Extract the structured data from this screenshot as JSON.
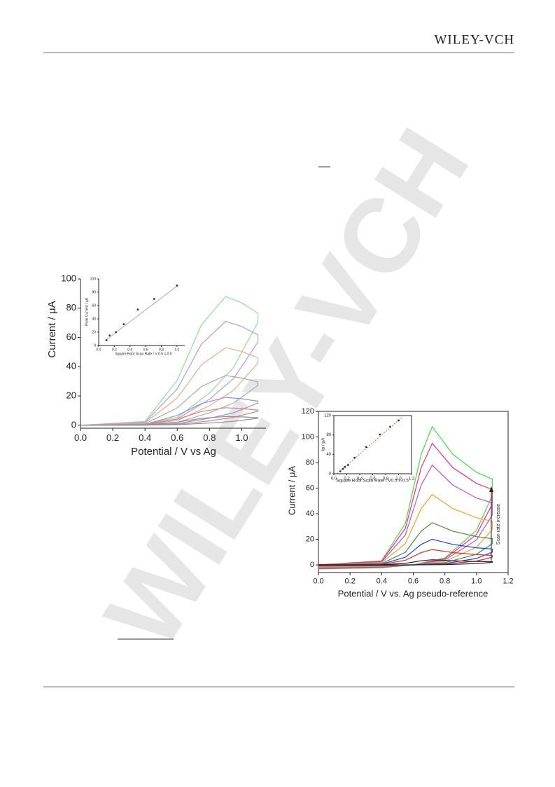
{
  "header": {
    "brand": "WILEY-VCH"
  },
  "watermark": "WILEY-VCH",
  "chart_data": [
    {
      "type": "line",
      "x_label": "Potential / V vs Ag",
      "y_label": "Current / μA",
      "xlim": [
        0,
        1.15
      ],
      "ylim": [
        -2,
        100
      ],
      "xticks": [
        {
          "value": 0,
          "label": "0.0"
        },
        0.2,
        0.4,
        0.6,
        0.8,
        {
          "value": 1,
          "label": "1.0"
        }
      ],
      "yticks": [
        0,
        20,
        40,
        60,
        80,
        100
      ],
      "x": [
        0,
        0.4,
        0.6,
        0.75,
        0.9,
        1.0,
        1.1,
        1.1,
        0.95,
        0.8,
        0.6,
        0.4,
        0
      ],
      "series": [
        {
          "color": "#8fe08f",
          "values": [
            0,
            2.6,
            30.8,
            68.6,
            88,
            83.6,
            76.6,
            70.4,
            39.6,
            22,
            5.3,
            0.9,
            0
          ]
        },
        {
          "color": "#a89ee8",
          "values": [
            0,
            2.1,
            24.9,
            55.4,
            71,
            67.5,
            61.8,
            56.8,
            32,
            17.8,
            4.3,
            0.7,
            0
          ]
        },
        {
          "color": "#f0a890",
          "values": [
            0,
            1.6,
            18.6,
            41.3,
            53,
            50.4,
            46.1,
            42.4,
            23.9,
            13.3,
            3.2,
            0.5,
            0
          ]
        },
        {
          "color": "#a0b0a0",
          "values": [
            0,
            1,
            11.9,
            26.5,
            34,
            32.3,
            29.6,
            27.2,
            15.3,
            8.5,
            2,
            0.3,
            0
          ]
        },
        {
          "color": "#9090d8",
          "values": [
            0,
            0.6,
            6.7,
            14.8,
            19,
            18.1,
            16.5,
            15.2,
            8.6,
            4.8,
            1.1,
            0.2,
            0
          ]
        },
        {
          "color": "#e08080",
          "values": [
            0,
            0.4,
            4.2,
            9.4,
            12,
            11.4,
            10.4,
            9.6,
            5.4,
            3,
            0.7,
            0.1,
            0
          ]
        },
        {
          "color": "#909090",
          "values": [
            0,
            0.2,
            2.1,
            4.7,
            6,
            5.7,
            5.2,
            4.8,
            2.7,
            1.5,
            0.4,
            0.1,
            0
          ]
        }
      ]
    },
    {
      "type": "scatter",
      "x_label": "Square Root Scan Rate / V 0.5 s-0.5",
      "y_label": "Peak Current / μA",
      "xlim": [
        0,
        1.1
      ],
      "ylim": [
        0,
        100
      ],
      "xticks": [
        {
          "value": 0,
          "label": "0.0"
        },
        0.2,
        0.4,
        0.6,
        0.8,
        {
          "value": 1,
          "label": "1.0"
        }
      ],
      "yticks": [
        0,
        20,
        40,
        60,
        80,
        100
      ],
      "x": [
        0.1,
        0.14,
        0.22,
        0.32,
        0.5,
        0.71,
        1.0
      ],
      "values": [
        8,
        15,
        20,
        32,
        54,
        70,
        90
      ],
      "color": "#222222",
      "fit": {
        "x": [
          0.08,
          1.02
        ],
        "values": [
          7,
          91
        ],
        "color": "#999999",
        "dashed": false
      }
    },
    {
      "type": "line",
      "x_label": "Potential / V vs. Ag pseudo-reference",
      "y_label": "Current / μA",
      "annotation": "Scan rate increase",
      "xlim": [
        0,
        1.2
      ],
      "ylim": [
        -6,
        120
      ],
      "xticks": [
        {
          "value": 0,
          "label": "0.0"
        },
        0.2,
        0.4,
        0.6,
        0.8,
        {
          "value": 1,
          "label": "1.0"
        },
        1.2
      ],
      "yticks": [
        0,
        20,
        40,
        60,
        80,
        100,
        120
      ],
      "x": [
        0,
        0.4,
        0.55,
        0.65,
        0.72,
        0.85,
        1.0,
        1.1,
        1.1,
        1.0,
        0.8,
        0.6,
        0.4,
        0
      ],
      "series": [
        {
          "color": "#40e040",
          "values": [
            0,
            3.2,
            32.4,
            86.4,
            108,
            86.4,
            72.4,
            67,
            54,
            27,
            5.4,
            0,
            -2.2,
            -3.2
          ]
        },
        {
          "color": "#f03070",
          "values": [
            0,
            2.9,
            28.5,
            76,
            95,
            76,
            63.7,
            58.9,
            47.5,
            23.8,
            4.8,
            0,
            -1.9,
            -2.9
          ]
        },
        {
          "color": "#b050f0",
          "values": [
            0,
            2.3,
            23.4,
            62.4,
            78,
            62.4,
            52.3,
            48.4,
            39,
            19.5,
            3.9,
            0,
            -1.6,
            -2.3
          ]
        },
        {
          "color": "#f0a030",
          "values": [
            0,
            1.7,
            16.5,
            44,
            55,
            44,
            36.9,
            34.1,
            27.5,
            13.8,
            2.8,
            0,
            -1.1,
            -1.7
          ]
        },
        {
          "color": "#409040",
          "values": [
            0,
            1,
            9.9,
            26.4,
            33,
            26.4,
            22.1,
            20.5,
            16.5,
            8.3,
            1.7,
            0,
            -0.7,
            -1
          ]
        },
        {
          "color": "#2040e0",
          "values": [
            0,
            0.6,
            6,
            16,
            20,
            16,
            13.4,
            12.4,
            10,
            5,
            1,
            0,
            -0.4,
            -0.6
          ]
        },
        {
          "color": "#e03030",
          "values": [
            0,
            0.4,
            3.6,
            9.6,
            12,
            9.6,
            8,
            7.4,
            6,
            3,
            0.6,
            0,
            -0.2,
            -0.4
          ]
        },
        {
          "color": "#202020",
          "values": [
            0,
            0.1,
            1.2,
            3.2,
            4,
            3.2,
            2.7,
            2.5,
            2,
            1,
            0.2,
            0,
            -0.1,
            -0.1
          ]
        }
      ]
    },
    {
      "type": "scatter",
      "x_label": "Square Root Scan Rate / V0.5 s-0.5",
      "y_label": "Ip / μA",
      "xlim": [
        0,
        1.2
      ],
      "ylim": [
        0,
        120
      ],
      "xticks": [
        {
          "value": 0,
          "label": "0.0"
        },
        0.2,
        0.4,
        0.6,
        0.8,
        {
          "value": 1,
          "label": "1.0"
        },
        1.2
      ],
      "yticks": [
        0,
        40,
        80,
        120
      ],
      "x": [
        0.1,
        0.14,
        0.17,
        0.22,
        0.32,
        0.5,
        0.71,
        0.87,
        1.0
      ],
      "values": [
        5,
        10,
        14,
        18,
        33,
        55,
        81,
        97,
        110
      ],
      "color": "#222222",
      "fit": {
        "x": [
          0.05,
          1.05
        ],
        "values": [
          0,
          116
        ],
        "color": "#e03030",
        "dashed": true
      }
    }
  ]
}
